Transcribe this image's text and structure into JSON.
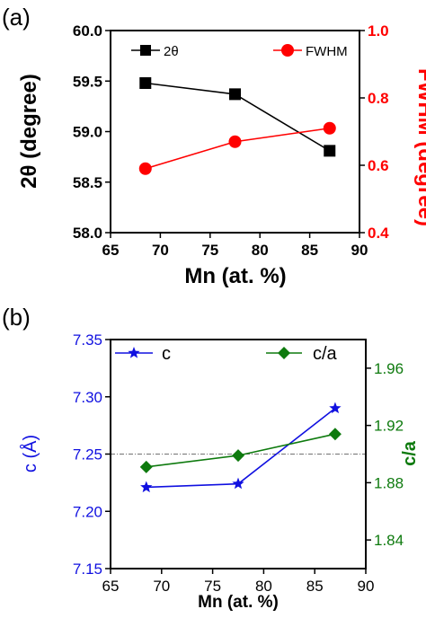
{
  "chart_data": [
    {
      "type": "line",
      "panel_label": "(a)",
      "xlabel": "Mn (at. %)",
      "xlim": [
        65,
        90
      ],
      "x_ticks": [
        "65",
        "70",
        "75",
        "80",
        "85",
        "90"
      ],
      "ylabel_left": "2θ (degree)",
      "ylim_left": [
        58.0,
        60.0
      ],
      "y_ticks_left": [
        "58.0",
        "58.5",
        "59.0",
        "59.5",
        "60.0"
      ],
      "ylabel_right": "FWHM (degree)",
      "ylim_right": [
        0.4,
        1.0
      ],
      "y_ticks_right": [
        "0.4",
        "0.6",
        "0.8",
        "1.0"
      ],
      "legend": [
        "2θ",
        "FWHM"
      ],
      "series": [
        {
          "name": "2θ",
          "axis": "left",
          "color": "#000000",
          "marker": "square",
          "x": [
            68.5,
            77.5,
            87.0
          ],
          "y": [
            59.48,
            59.37,
            58.81
          ]
        },
        {
          "name": "FWHM",
          "axis": "right",
          "color": "#ff0000",
          "marker": "circle",
          "x": [
            68.5,
            77.5,
            87.0
          ],
          "y": [
            0.59,
            0.67,
            0.71
          ]
        }
      ]
    },
    {
      "type": "line",
      "panel_label": "(b)",
      "xlabel": "Mn (at. %)",
      "xlim": [
        65,
        90
      ],
      "x_ticks": [
        "65",
        "70",
        "75",
        "80",
        "85",
        "90"
      ],
      "ylabel_left": "c (Å)",
      "ylim_left": [
        7.15,
        7.35
      ],
      "y_ticks_left": [
        "7.15",
        "7.20",
        "7.25",
        "7.30",
        "7.35"
      ],
      "ylabel_right": "c/a",
      "ylim_right": [
        1.82,
        1.98
      ],
      "y_ticks_right": [
        "1.84",
        "1.88",
        "1.92",
        "1.96"
      ],
      "legend": [
        "c",
        "c/a"
      ],
      "reference_line": {
        "axis": "right",
        "y": 1.9,
        "style": "dash-dot"
      },
      "series": [
        {
          "name": "c",
          "axis": "left",
          "color": "#1010e0",
          "marker": "star",
          "x": [
            68.5,
            77.5,
            87.0
          ],
          "y": [
            7.221,
            7.224,
            7.29
          ]
        },
        {
          "name": "c/a",
          "axis": "right",
          "color": "#0e7a0e",
          "marker": "diamond",
          "x": [
            68.5,
            77.5,
            87.0
          ],
          "y": [
            1.891,
            1.899,
            1.914
          ]
        }
      ]
    }
  ]
}
